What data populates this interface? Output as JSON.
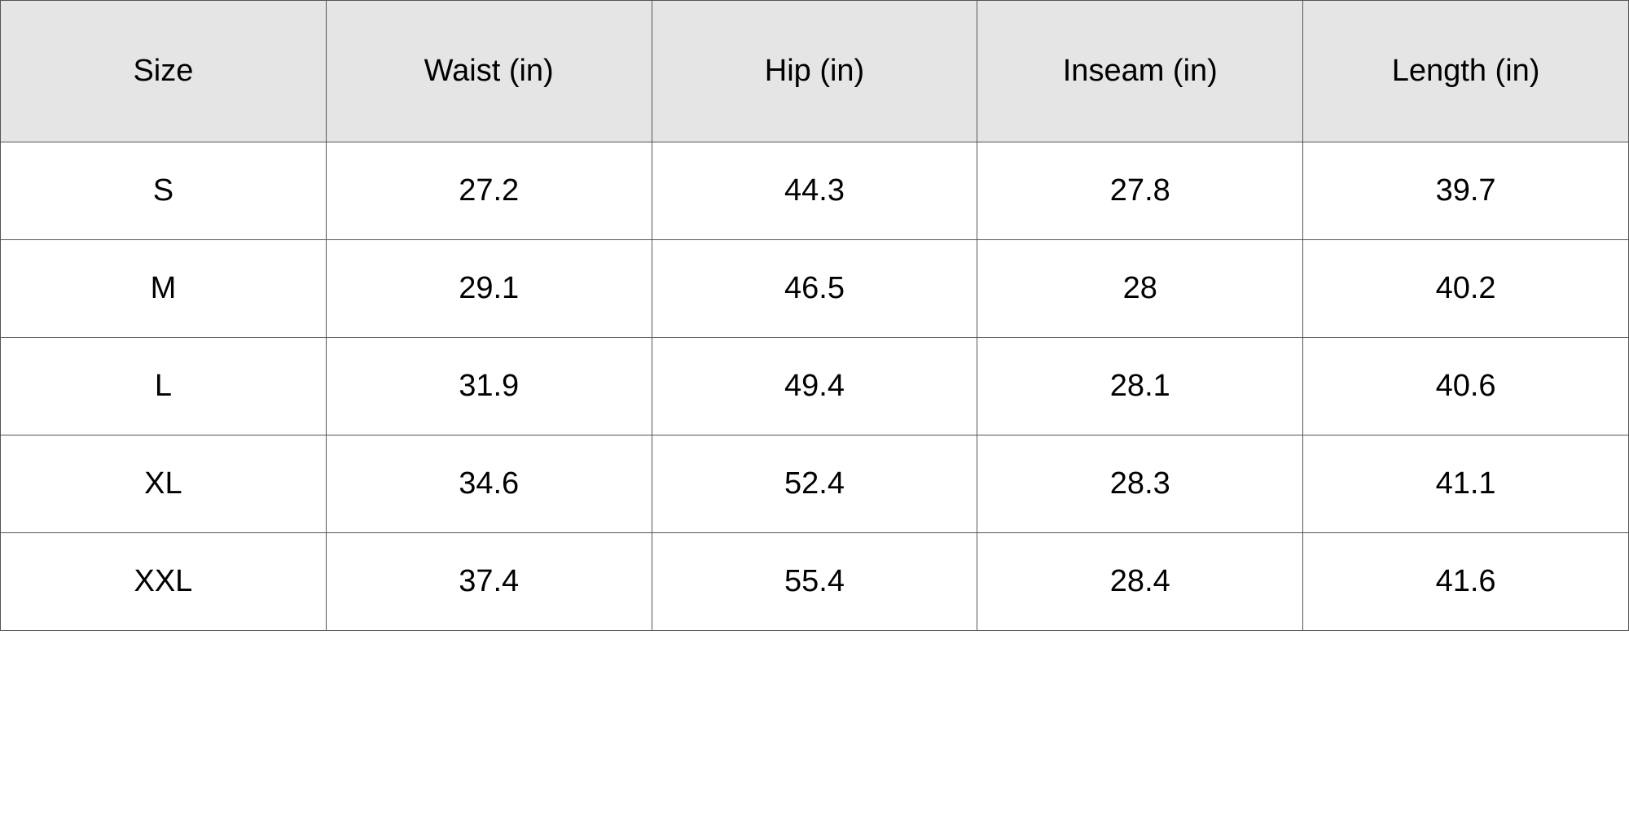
{
  "table": {
    "header": [
      "Size",
      "Waist (in)",
      "Hip (in)",
      "Inseam (in)",
      "Length (in)"
    ],
    "rows": [
      [
        "S",
        27.2,
        44.3,
        27.8,
        39.7
      ],
      [
        "M",
        29.1,
        46.5,
        28,
        40.2
      ],
      [
        "L",
        31.9,
        49.4,
        28.1,
        40.6
      ],
      [
        "XL",
        34.6,
        52.4,
        28.3,
        41.1
      ],
      [
        "XXL",
        37.4,
        55.4,
        28.4,
        41.6
      ]
    ]
  }
}
